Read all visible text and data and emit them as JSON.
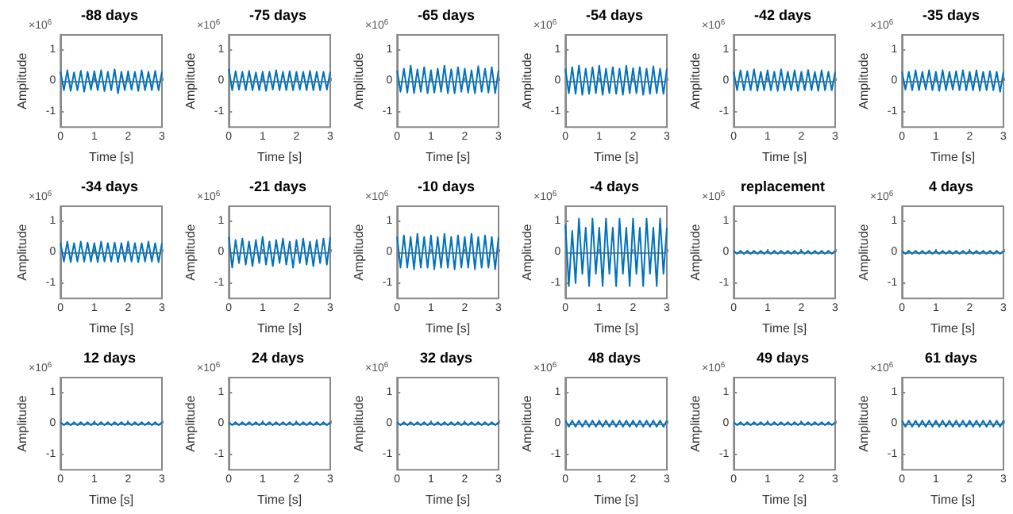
{
  "chart_data": [
    {
      "type": "line",
      "title": "-88 days",
      "xlabel": "Time [s]",
      "ylabel": "Amplitude",
      "annotations": [
        "×10$^{6}$"
      ],
      "marker": "none",
      "xlim": [
        0,
        3
      ],
      "xticks": [
        0,
        1,
        2,
        3
      ],
      "ylim": [
        -1.5,
        1.5
      ],
      "yticks": [
        -1,
        0,
        1
      ],
      "x": [
        0,
        0.1,
        0.2,
        0.3,
        0.4,
        0.5,
        0.6,
        0.7,
        0.8,
        0.9,
        1,
        1.1,
        1.2,
        1.3,
        1.4,
        1.5,
        1.6,
        1.7,
        1.8,
        1.9,
        2,
        2.1,
        2.2,
        2.3,
        2.4,
        2.5,
        2.6,
        2.7,
        2.8,
        2.9,
        3
      ],
      "series": [
        {
          "color": "#0072bd",
          "values": [
            0.3,
            -0.3,
            0.35,
            -0.32,
            0.28,
            -0.3,
            0.33,
            -0.35,
            0.3,
            -0.28,
            0.32,
            -0.3,
            0.35,
            -0.33,
            0.3,
            -0.3,
            0.38,
            -0.4,
            0.3,
            -0.3,
            0.32,
            -0.28,
            0.3,
            -0.32,
            0.35,
            -0.3,
            0.3,
            -0.3,
            0.33,
            -0.3,
            0.3
          ]
        }
      ]
    },
    {
      "type": "line",
      "title": "-75 days",
      "xlabel": "Time [s]",
      "ylabel": "Amplitude",
      "annotations": [
        "×10$^{6}$"
      ],
      "marker": "none",
      "xlim": [
        0,
        3
      ],
      "xticks": [
        0,
        1,
        2,
        3
      ],
      "ylim": [
        -1.5,
        1.5
      ],
      "yticks": [
        -1,
        0,
        1
      ],
      "x": [
        0,
        0.1,
        0.2,
        0.3,
        0.4,
        0.5,
        0.6,
        0.7,
        0.8,
        0.9,
        1,
        1.1,
        1.2,
        1.3,
        1.4,
        1.5,
        1.6,
        1.7,
        1.8,
        1.9,
        2,
        2.1,
        2.2,
        2.3,
        2.4,
        2.5,
        2.6,
        2.7,
        2.8,
        2.9,
        3
      ],
      "series": [
        {
          "color": "#0072bd",
          "values": [
            0.4,
            -0.3,
            0.32,
            -0.28,
            0.3,
            -0.3,
            0.33,
            -0.3,
            0.28,
            -0.3,
            0.3,
            -0.32,
            0.3,
            -0.28,
            0.35,
            -0.3,
            0.3,
            -0.3,
            0.32,
            -0.3,
            0.3,
            -0.28,
            0.3,
            -0.3,
            0.33,
            -0.3,
            0.3,
            -0.3,
            0.3,
            -0.28,
            0.3
          ]
        }
      ]
    },
    {
      "type": "line",
      "title": "-65 days",
      "xlabel": "Time [s]",
      "ylabel": "Amplitude",
      "annotations": [
        "×10$^{6}$"
      ],
      "marker": "none",
      "xlim": [
        0,
        3
      ],
      "xticks": [
        0,
        1,
        2,
        3
      ],
      "ylim": [
        -1.5,
        1.5
      ],
      "yticks": [
        -1,
        0,
        1
      ],
      "x": [
        0,
        0.1,
        0.2,
        0.3,
        0.4,
        0.5,
        0.6,
        0.7,
        0.8,
        0.9,
        1,
        1.1,
        1.2,
        1.3,
        1.4,
        1.5,
        1.6,
        1.7,
        1.8,
        1.9,
        2,
        2.1,
        2.2,
        2.3,
        2.4,
        2.5,
        2.6,
        2.7,
        2.8,
        2.9,
        3
      ],
      "series": [
        {
          "color": "#0072bd",
          "values": [
            0.35,
            -0.35,
            0.4,
            -0.38,
            0.5,
            -0.4,
            0.38,
            -0.35,
            0.45,
            -0.4,
            0.35,
            -0.38,
            0.4,
            -0.35,
            0.5,
            -0.4,
            0.38,
            -0.4,
            0.45,
            -0.35,
            0.4,
            -0.38,
            0.35,
            -0.4,
            0.48,
            -0.35,
            0.4,
            -0.38,
            0.45,
            -0.4,
            0.35
          ]
        }
      ]
    },
    {
      "type": "line",
      "title": "-54 days",
      "xlabel": "Time [s]",
      "ylabel": "Amplitude",
      "annotations": [
        "×10$^{6}$"
      ],
      "marker": "none",
      "xlim": [
        0,
        3
      ],
      "xticks": [
        0,
        1,
        2,
        3
      ],
      "ylim": [
        -1.5,
        1.5
      ],
      "yticks": [
        -1,
        0,
        1
      ],
      "x": [
        0,
        0.1,
        0.2,
        0.3,
        0.4,
        0.5,
        0.6,
        0.7,
        0.8,
        0.9,
        1,
        1.1,
        1.2,
        1.3,
        1.4,
        1.5,
        1.6,
        1.7,
        1.8,
        1.9,
        2,
        2.1,
        2.2,
        2.3,
        2.4,
        2.5,
        2.6,
        2.7,
        2.8,
        2.9,
        3
      ],
      "series": [
        {
          "color": "#0072bd",
          "values": [
            0.4,
            -0.4,
            0.45,
            -0.42,
            0.5,
            -0.45,
            0.4,
            -0.42,
            0.45,
            -0.4,
            0.5,
            -0.45,
            0.4,
            -0.4,
            0.45,
            -0.42,
            0.4,
            -0.45,
            0.5,
            -0.4,
            0.42,
            -0.4,
            0.45,
            -0.45,
            0.4,
            -0.42,
            0.48,
            -0.4,
            0.4,
            -0.42,
            0.4
          ]
        }
      ]
    },
    {
      "type": "line",
      "title": "-42 days",
      "xlabel": "Time [s]",
      "ylabel": "Amplitude",
      "annotations": [
        "×10$^{6}$"
      ],
      "marker": "none",
      "xlim": [
        0,
        3
      ],
      "xticks": [
        0,
        1,
        2,
        3
      ],
      "ylim": [
        -1.5,
        1.5
      ],
      "yticks": [
        -1,
        0,
        1
      ],
      "x": [
        0,
        0.1,
        0.2,
        0.3,
        0.4,
        0.5,
        0.6,
        0.7,
        0.8,
        0.9,
        1,
        1.1,
        1.2,
        1.3,
        1.4,
        1.5,
        1.6,
        1.7,
        1.8,
        1.9,
        2,
        2.1,
        2.2,
        2.3,
        2.4,
        2.5,
        2.6,
        2.7,
        2.8,
        2.9,
        3
      ],
      "series": [
        {
          "color": "#0072bd",
          "values": [
            0.3,
            -0.3,
            0.35,
            -0.3,
            0.32,
            -0.3,
            0.38,
            -0.32,
            0.3,
            -0.3,
            0.35,
            -0.3,
            0.3,
            -0.32,
            0.38,
            -0.3,
            0.3,
            -0.3,
            0.35,
            -0.32,
            0.3,
            -0.3,
            0.36,
            -0.3,
            0.3,
            -0.32,
            0.35,
            -0.3,
            0.3,
            -0.3,
            0.3
          ]
        }
      ]
    },
    {
      "type": "line",
      "title": "-35 days",
      "xlabel": "Time [s]",
      "ylabel": "Amplitude",
      "annotations": [
        "×10$^{6}$"
      ],
      "marker": "none",
      "xlim": [
        0,
        3
      ],
      "xticks": [
        0,
        1,
        2,
        3
      ],
      "ylim": [
        -1.5,
        1.5
      ],
      "yticks": [
        -1,
        0,
        1
      ],
      "x": [
        0,
        0.1,
        0.2,
        0.3,
        0.4,
        0.5,
        0.6,
        0.7,
        0.8,
        0.9,
        1,
        1.1,
        1.2,
        1.3,
        1.4,
        1.5,
        1.6,
        1.7,
        1.8,
        1.9,
        2,
        2.1,
        2.2,
        2.3,
        2.4,
        2.5,
        2.6,
        2.7,
        2.8,
        2.9,
        3
      ],
      "series": [
        {
          "color": "#0072bd",
          "values": [
            0.3,
            -0.28,
            0.3,
            -0.3,
            0.35,
            -0.3,
            0.3,
            -0.28,
            0.35,
            -0.3,
            0.3,
            -0.32,
            0.35,
            -0.3,
            0.3,
            -0.28,
            0.32,
            -0.3,
            0.35,
            -0.3,
            0.3,
            -0.3,
            0.35,
            -0.32,
            0.3,
            -0.3,
            0.32,
            -0.3,
            0.3,
            -0.35,
            0.3
          ]
        }
      ]
    },
    {
      "type": "line",
      "title": "-34 days",
      "xlabel": "Time [s]",
      "ylabel": "Amplitude",
      "annotations": [
        "×10$^{6}$"
      ],
      "marker": "none",
      "xlim": [
        0,
        3
      ],
      "xticks": [
        0,
        1,
        2,
        3
      ],
      "ylim": [
        -1.5,
        1.5
      ],
      "yticks": [
        -1,
        0,
        1
      ],
      "x": [
        0,
        0.1,
        0.2,
        0.3,
        0.4,
        0.5,
        0.6,
        0.7,
        0.8,
        0.9,
        1,
        1.1,
        1.2,
        1.3,
        1.4,
        1.5,
        1.6,
        1.7,
        1.8,
        1.9,
        2,
        2.1,
        2.2,
        2.3,
        2.4,
        2.5,
        2.6,
        2.7,
        2.8,
        2.9,
        3
      ],
      "series": [
        {
          "color": "#0072bd",
          "values": [
            0.3,
            -0.3,
            0.35,
            -0.32,
            0.3,
            -0.3,
            0.35,
            -0.3,
            0.32,
            -0.3,
            0.3,
            -0.32,
            0.35,
            -0.3,
            0.3,
            -0.3,
            0.32,
            -0.32,
            0.3,
            -0.3,
            0.35,
            -0.3,
            0.3,
            -0.32,
            0.3,
            -0.3,
            0.35,
            -0.3,
            0.3,
            -0.32,
            0.3
          ]
        }
      ]
    },
    {
      "type": "line",
      "title": "-21 days",
      "xlabel": "Time [s]",
      "ylabel": "Amplitude",
      "annotations": [
        "×10$^{6}$"
      ],
      "marker": "none",
      "xlim": [
        0,
        3
      ],
      "xticks": [
        0,
        1,
        2,
        3
      ],
      "ylim": [
        -1.5,
        1.5
      ],
      "yticks": [
        -1,
        0,
        1
      ],
      "x": [
        0,
        0.1,
        0.2,
        0.3,
        0.4,
        0.5,
        0.6,
        0.7,
        0.8,
        0.9,
        1,
        1.1,
        1.2,
        1.3,
        1.4,
        1.5,
        1.6,
        1.7,
        1.8,
        1.9,
        2,
        2.1,
        2.2,
        2.3,
        2.4,
        2.5,
        2.6,
        2.7,
        2.8,
        2.9,
        3
      ],
      "series": [
        {
          "color": "#0072bd",
          "values": [
            0.5,
            -0.5,
            0.4,
            -0.35,
            0.45,
            -0.4,
            0.35,
            -0.45,
            0.4,
            -0.35,
            0.5,
            -0.4,
            0.35,
            -0.45,
            0.4,
            -0.35,
            0.45,
            -0.4,
            0.35,
            -0.5,
            0.4,
            -0.35,
            0.45,
            -0.4,
            0.35,
            -0.45,
            0.4,
            -0.35,
            0.45,
            -0.4,
            0.5
          ]
        }
      ]
    },
    {
      "type": "line",
      "title": "-10 days",
      "xlabel": "Time [s]",
      "ylabel": "Amplitude",
      "annotations": [
        "×10$^{6}$"
      ],
      "marker": "none",
      "xlim": [
        0,
        3
      ],
      "xticks": [
        0,
        1,
        2,
        3
      ],
      "ylim": [
        -1.5,
        1.5
      ],
      "yticks": [
        -1,
        0,
        1
      ],
      "x": [
        0,
        0.1,
        0.2,
        0.3,
        0.4,
        0.5,
        0.6,
        0.7,
        0.8,
        0.9,
        1,
        1.1,
        1.2,
        1.3,
        1.4,
        1.5,
        1.6,
        1.7,
        1.8,
        1.9,
        2,
        2.1,
        2.2,
        2.3,
        2.4,
        2.5,
        2.6,
        2.7,
        2.8,
        2.9,
        3
      ],
      "series": [
        {
          "color": "#0072bd",
          "values": [
            0.5,
            -0.5,
            0.55,
            -0.5,
            0.5,
            -0.55,
            0.6,
            -0.5,
            0.5,
            -0.5,
            0.55,
            -0.55,
            0.5,
            -0.5,
            0.6,
            -0.5,
            0.5,
            -0.55,
            0.55,
            -0.5,
            0.5,
            -0.5,
            0.6,
            -0.55,
            0.5,
            -0.5,
            0.55,
            -0.5,
            0.5,
            -0.55,
            0.5
          ]
        }
      ]
    },
    {
      "type": "line",
      "title": "-4 days",
      "xlabel": "Time [s]",
      "ylabel": "Amplitude",
      "annotations": [
        "×10$^{6}$"
      ],
      "marker": "none",
      "xlim": [
        0,
        3
      ],
      "xticks": [
        0,
        1,
        2,
        3
      ],
      "ylim": [
        -1.5,
        1.5
      ],
      "yticks": [
        -1,
        0,
        1
      ],
      "x": [
        0,
        0.1,
        0.2,
        0.3,
        0.4,
        0.5,
        0.6,
        0.7,
        0.8,
        0.9,
        1,
        1.1,
        1.2,
        1.3,
        1.4,
        1.5,
        1.6,
        1.7,
        1.8,
        1.9,
        2,
        2.1,
        2.2,
        2.3,
        2.4,
        2.5,
        2.6,
        2.7,
        2.8,
        2.9,
        3
      ],
      "series": [
        {
          "color": "#0072bd",
          "values": [
            0.9,
            -1.1,
            0.7,
            -1.0,
            1.1,
            -0.7,
            0.8,
            -1.1,
            1.1,
            -0.7,
            0.8,
            -1.1,
            1.1,
            -0.7,
            0.8,
            -1.1,
            1.1,
            -0.7,
            0.8,
            -1.1,
            1.1,
            -0.7,
            0.8,
            -1.1,
            1.1,
            -0.7,
            0.8,
            -1.1,
            1.1,
            -0.7,
            0.8
          ]
        }
      ]
    },
    {
      "type": "line",
      "title": "replacement",
      "xlabel": "Time [s]",
      "ylabel": "Amplitude",
      "annotations": [
        "×10$^{6}$"
      ],
      "marker": "none",
      "xlim": [
        0,
        3
      ],
      "xticks": [
        0,
        1,
        2,
        3
      ],
      "ylim": [
        -1.5,
        1.5
      ],
      "yticks": [
        -1,
        0,
        1
      ],
      "x": [
        0,
        0.1,
        0.2,
        0.3,
        0.4,
        0.5,
        0.6,
        0.7,
        0.8,
        0.9,
        1,
        1.1,
        1.2,
        1.3,
        1.4,
        1.5,
        1.6,
        1.7,
        1.8,
        1.9,
        2,
        2.1,
        2.2,
        2.3,
        2.4,
        2.5,
        2.6,
        2.7,
        2.8,
        2.9,
        3
      ],
      "series": [
        {
          "color": "#0072bd",
          "values": [
            0.05,
            -0.05,
            0.05,
            -0.05,
            0.05,
            -0.05,
            0.05,
            -0.05,
            0.05,
            -0.05,
            0.05,
            -0.05,
            0.05,
            -0.05,
            0.05,
            -0.05,
            0.05,
            -0.05,
            0.05,
            -0.05,
            0.05,
            -0.05,
            0.05,
            -0.05,
            0.05,
            -0.05,
            0.05,
            -0.05,
            0.05,
            -0.05,
            0.05
          ]
        }
      ]
    },
    {
      "type": "line",
      "title": "4 days",
      "xlabel": "Time [s]",
      "ylabel": "Amplitude",
      "annotations": [
        "×10$^{6}$"
      ],
      "marker": "none",
      "xlim": [
        0,
        3
      ],
      "xticks": [
        0,
        1,
        2,
        3
      ],
      "ylim": [
        -1.5,
        1.5
      ],
      "yticks": [
        -1,
        0,
        1
      ],
      "x": [
        0,
        0.1,
        0.2,
        0.3,
        0.4,
        0.5,
        0.6,
        0.7,
        0.8,
        0.9,
        1,
        1.1,
        1.2,
        1.3,
        1.4,
        1.5,
        1.6,
        1.7,
        1.8,
        1.9,
        2,
        2.1,
        2.2,
        2.3,
        2.4,
        2.5,
        2.6,
        2.7,
        2.8,
        2.9,
        3
      ],
      "series": [
        {
          "color": "#0072bd",
          "values": [
            0.05,
            -0.05,
            0.05,
            -0.05,
            0.05,
            -0.05,
            0.05,
            -0.05,
            0.05,
            -0.05,
            0.05,
            -0.05,
            0.05,
            -0.05,
            0.05,
            -0.05,
            0.05,
            -0.05,
            0.05,
            -0.05,
            0.05,
            -0.05,
            0.05,
            -0.05,
            0.05,
            -0.05,
            0.05,
            -0.05,
            0.05,
            -0.05,
            0.05
          ]
        }
      ]
    },
    {
      "type": "line",
      "title": "12 days",
      "xlabel": "Time [s]",
      "ylabel": "Amplitude",
      "annotations": [
        "×10$^{6}$"
      ],
      "marker": "none",
      "xlim": [
        0,
        3
      ],
      "xticks": [
        0,
        1,
        2,
        3
      ],
      "ylim": [
        -1.5,
        1.5
      ],
      "yticks": [
        -1,
        0,
        1
      ],
      "x": [
        0,
        0.1,
        0.2,
        0.3,
        0.4,
        0.5,
        0.6,
        0.7,
        0.8,
        0.9,
        1,
        1.1,
        1.2,
        1.3,
        1.4,
        1.5,
        1.6,
        1.7,
        1.8,
        1.9,
        2,
        2.1,
        2.2,
        2.3,
        2.4,
        2.5,
        2.6,
        2.7,
        2.8,
        2.9,
        3
      ],
      "series": [
        {
          "color": "#0072bd",
          "values": [
            0.05,
            -0.05,
            0.05,
            -0.05,
            0.05,
            -0.05,
            0.05,
            -0.05,
            0.05,
            -0.05,
            0.05,
            -0.05,
            0.05,
            -0.05,
            0.05,
            -0.05,
            0.05,
            -0.05,
            0.05,
            -0.05,
            0.05,
            -0.05,
            0.05,
            -0.05,
            0.05,
            -0.05,
            0.05,
            -0.05,
            0.05,
            -0.05,
            0.05
          ]
        }
      ]
    },
    {
      "type": "line",
      "title": "24 days",
      "xlabel": "Time [s]",
      "ylabel": "Amplitude",
      "annotations": [
        "×10$^{6}$"
      ],
      "marker": "none",
      "xlim": [
        0,
        3
      ],
      "xticks": [
        0,
        1,
        2,
        3
      ],
      "ylim": [
        -1.5,
        1.5
      ],
      "yticks": [
        -1,
        0,
        1
      ],
      "x": [
        0,
        0.1,
        0.2,
        0.3,
        0.4,
        0.5,
        0.6,
        0.7,
        0.8,
        0.9,
        1,
        1.1,
        1.2,
        1.3,
        1.4,
        1.5,
        1.6,
        1.7,
        1.8,
        1.9,
        2,
        2.1,
        2.2,
        2.3,
        2.4,
        2.5,
        2.6,
        2.7,
        2.8,
        2.9,
        3
      ],
      "series": [
        {
          "color": "#0072bd",
          "values": [
            0.05,
            -0.05,
            0.05,
            -0.05,
            0.05,
            -0.05,
            0.05,
            -0.05,
            0.05,
            -0.05,
            0.05,
            -0.05,
            0.05,
            -0.05,
            0.05,
            -0.05,
            0.05,
            -0.05,
            0.05,
            -0.05,
            0.05,
            -0.05,
            0.05,
            -0.05,
            0.05,
            -0.05,
            0.05,
            -0.05,
            0.05,
            -0.05,
            0.05
          ]
        }
      ]
    },
    {
      "type": "line",
      "title": "32 days",
      "xlabel": "Time [s]",
      "ylabel": "Amplitude",
      "annotations": [
        "×10$^{6}$"
      ],
      "marker": "none",
      "xlim": [
        0,
        3
      ],
      "xticks": [
        0,
        1,
        2,
        3
      ],
      "ylim": [
        -1.5,
        1.5
      ],
      "yticks": [
        -1,
        0,
        1
      ],
      "x": [
        0,
        0.1,
        0.2,
        0.3,
        0.4,
        0.5,
        0.6,
        0.7,
        0.8,
        0.9,
        1,
        1.1,
        1.2,
        1.3,
        1.4,
        1.5,
        1.6,
        1.7,
        1.8,
        1.9,
        2,
        2.1,
        2.2,
        2.3,
        2.4,
        2.5,
        2.6,
        2.7,
        2.8,
        2.9,
        3
      ],
      "series": [
        {
          "color": "#0072bd",
          "values": [
            0.05,
            -0.05,
            0.05,
            -0.05,
            0.05,
            -0.05,
            0.05,
            -0.05,
            0.05,
            -0.05,
            0.05,
            -0.05,
            0.05,
            -0.05,
            0.05,
            -0.05,
            0.05,
            -0.05,
            0.05,
            -0.05,
            0.05,
            -0.05,
            0.05,
            -0.05,
            0.05,
            -0.05,
            0.05,
            -0.05,
            0.05,
            -0.05,
            0.05
          ]
        }
      ]
    },
    {
      "type": "line",
      "title": "48 days",
      "xlabel": "Time [s]",
      "ylabel": "Amplitude",
      "annotations": [
        "×10$^{6}$"
      ],
      "marker": "none",
      "xlim": [
        0,
        3
      ],
      "xticks": [
        0,
        1,
        2,
        3
      ],
      "ylim": [
        -1.5,
        1.5
      ],
      "yticks": [
        -1,
        0,
        1
      ],
      "x": [
        0,
        0.1,
        0.2,
        0.3,
        0.4,
        0.5,
        0.6,
        0.7,
        0.8,
        0.9,
        1,
        1.1,
        1.2,
        1.3,
        1.4,
        1.5,
        1.6,
        1.7,
        1.8,
        1.9,
        2,
        2.1,
        2.2,
        2.3,
        2.4,
        2.5,
        2.6,
        2.7,
        2.8,
        2.9,
        3
      ],
      "series": [
        {
          "color": "#0072bd",
          "values": [
            0.1,
            -0.1,
            0.1,
            -0.1,
            0.1,
            -0.1,
            0.1,
            -0.1,
            0.1,
            -0.1,
            0.1,
            -0.1,
            0.1,
            -0.1,
            0.1,
            -0.1,
            0.1,
            -0.1,
            0.1,
            -0.1,
            0.1,
            -0.1,
            0.1,
            -0.1,
            0.1,
            -0.1,
            0.1,
            -0.1,
            0.1,
            -0.1,
            0.1
          ]
        }
      ]
    },
    {
      "type": "line",
      "title": "49 days",
      "xlabel": "Time [s]",
      "ylabel": "Amplitude",
      "annotations": [
        "×10$^{6}$"
      ],
      "marker": "none",
      "xlim": [
        0,
        3
      ],
      "xticks": [
        0,
        1,
        2,
        3
      ],
      "ylim": [
        -1.5,
        1.5
      ],
      "yticks": [
        -1,
        0,
        1
      ],
      "x": [
        0,
        0.1,
        0.2,
        0.3,
        0.4,
        0.5,
        0.6,
        0.7,
        0.8,
        0.9,
        1,
        1.1,
        1.2,
        1.3,
        1.4,
        1.5,
        1.6,
        1.7,
        1.8,
        1.9,
        2,
        2.1,
        2.2,
        2.3,
        2.4,
        2.5,
        2.6,
        2.7,
        2.8,
        2.9,
        3
      ],
      "series": [
        {
          "color": "#0072bd",
          "values": [
            0.05,
            -0.05,
            0.05,
            -0.05,
            0.05,
            -0.05,
            0.05,
            -0.05,
            0.05,
            -0.05,
            0.05,
            -0.05,
            0.05,
            -0.05,
            0.05,
            -0.05,
            0.05,
            -0.05,
            0.05,
            -0.05,
            0.05,
            -0.05,
            0.05,
            -0.05,
            0.05,
            -0.05,
            0.05,
            -0.05,
            0.05,
            -0.05,
            0.05
          ]
        }
      ]
    },
    {
      "type": "line",
      "title": "61 days",
      "xlabel": "Time [s]",
      "ylabel": "Amplitude",
      "annotations": [
        "×10$^{6}$"
      ],
      "marker": "none",
      "xlim": [
        0,
        3
      ],
      "xticks": [
        0,
        1,
        2,
        3
      ],
      "ylim": [
        -1.5,
        1.5
      ],
      "yticks": [
        -1,
        0,
        1
      ],
      "x": [
        0,
        0.1,
        0.2,
        0.3,
        0.4,
        0.5,
        0.6,
        0.7,
        0.8,
        0.9,
        1,
        1.1,
        1.2,
        1.3,
        1.4,
        1.5,
        1.6,
        1.7,
        1.8,
        1.9,
        2,
        2.1,
        2.2,
        2.3,
        2.4,
        2.5,
        2.6,
        2.7,
        2.8,
        2.9,
        3
      ],
      "series": [
        {
          "color": "#0072bd",
          "values": [
            0.1,
            -0.1,
            0.1,
            -0.1,
            0.1,
            -0.1,
            0.1,
            -0.1,
            0.1,
            -0.1,
            0.1,
            -0.1,
            0.1,
            -0.1,
            0.1,
            -0.1,
            0.1,
            -0.1,
            0.1,
            -0.1,
            0.1,
            -0.1,
            0.1,
            -0.1,
            0.1,
            -0.1,
            0.1,
            -0.1,
            0.1,
            -0.1,
            0.1
          ]
        }
      ]
    }
  ]
}
